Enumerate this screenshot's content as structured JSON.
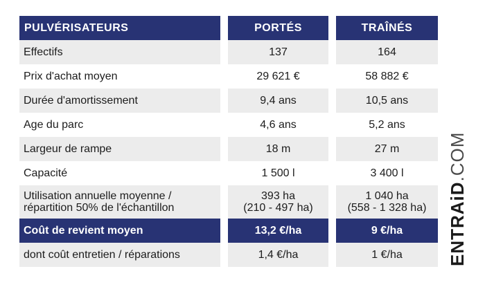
{
  "table": {
    "header": {
      "label": "PULVÉRISATEURS",
      "col_a": "PORTÉS",
      "col_b": "TRAÎNÉS"
    },
    "rows": [
      {
        "label": "Effectifs",
        "a": "137",
        "b": "164",
        "style": "grey"
      },
      {
        "label": "Prix d'achat moyen",
        "a": "29 621 €",
        "b": "58 882 €",
        "style": "white"
      },
      {
        "label": "Durée d'amortissement",
        "a": "9,4 ans",
        "b": "10,5 ans",
        "style": "grey"
      },
      {
        "label": "Age du parc",
        "a": "4,6 ans",
        "b": "5,2 ans",
        "style": "white"
      },
      {
        "label": "Largeur de rampe",
        "a": "18 m",
        "b": "27 m",
        "style": "grey"
      },
      {
        "label": "Capacité",
        "a": "1 500 l",
        "b": "3 400 l",
        "style": "white"
      },
      {
        "label_line1": "Utilisation annuelle moyenne /",
        "label_line2": "répartition 50% de l'échantillon",
        "a_line1": "393 ha",
        "a_line2": "(210 - 497 ha)",
        "b_line1": "1 040 ha",
        "b_line2": "(558 - 1 328 ha)",
        "style": "grey"
      },
      {
        "label": "Coût de revient moyen",
        "a": "13,2 €/ha",
        "b": "9 €/ha",
        "style": "navy"
      },
      {
        "label": "dont coût entretien / réparations",
        "a": "1,4 €/ha",
        "b": "1 €/ha",
        "style": "grey"
      }
    ]
  },
  "logo": {
    "brand": "ENTRAiD",
    "tld": ".COM"
  },
  "colors": {
    "navy": "#283374",
    "grey_row": "#ececec",
    "text": "#1c1c1c"
  }
}
